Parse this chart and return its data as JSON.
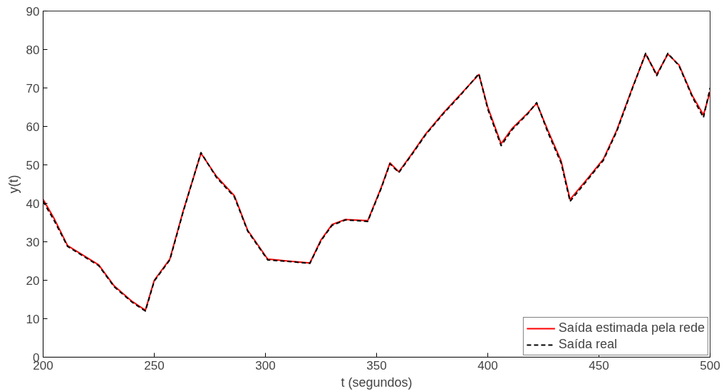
{
  "chart_data": {
    "type": "line",
    "xlabel": "t (segundos)",
    "ylabel": "y(t)",
    "x": [
      200,
      205,
      211,
      218,
      225,
      232,
      240,
      246,
      250,
      257,
      263,
      271,
      278,
      286,
      292,
      301,
      310,
      320,
      325,
      330,
      336,
      346,
      352,
      356,
      360,
      366,
      372,
      380,
      388,
      396,
      400,
      406,
      411,
      418,
      422,
      427,
      433,
      437,
      445,
      452,
      458,
      465,
      471,
      476,
      481,
      486,
      492,
      497,
      500
    ],
    "series": [
      {
        "name": "Saída estimada pela rede",
        "color": "#ff0000",
        "line_style": "solid",
        "values": [
          41,
          36,
          29,
          26.5,
          24,
          18.5,
          14.5,
          12.2,
          20,
          25.5,
          38,
          53,
          47,
          42,
          33,
          25.5,
          25,
          24.5,
          30.5,
          34.5,
          35.8,
          35.5,
          44,
          50.5,
          48.2,
          53,
          58,
          63.5,
          68.5,
          73.5,
          65,
          55.5,
          59.5,
          63.5,
          66,
          59,
          51,
          41,
          46.5,
          51.5,
          59,
          70,
          78.8,
          73.5,
          78.8,
          76,
          68,
          63,
          69
        ]
      },
      {
        "name": "Saída real",
        "color": "#000000",
        "line_style": "dashed",
        "values": [
          40.5,
          35.5,
          28.8,
          26.3,
          23.8,
          18.3,
          14.3,
          12,
          19.8,
          25.3,
          37.8,
          53.2,
          46.7,
          41.7,
          32.8,
          25.3,
          24.9,
          24.4,
          30.3,
          34.3,
          35.7,
          35.3,
          43.8,
          50.3,
          48,
          52.8,
          57.8,
          63.3,
          68.3,
          73.7,
          64.5,
          55,
          59.2,
          63.3,
          66.2,
          58.5,
          50.5,
          40.5,
          46.2,
          51.2,
          58.7,
          69.8,
          79,
          73.2,
          79,
          75.8,
          67.7,
          62.3,
          70
        ]
      }
    ],
    "xlim": [
      200,
      500
    ],
    "ylim": [
      0,
      90
    ],
    "xticks": [
      200,
      250,
      300,
      350,
      400,
      450,
      500
    ],
    "yticks": [
      0,
      10,
      20,
      30,
      40,
      50,
      60,
      70,
      80,
      90
    ],
    "grid": false,
    "legend": "bottom right",
    "marker": "none"
  }
}
